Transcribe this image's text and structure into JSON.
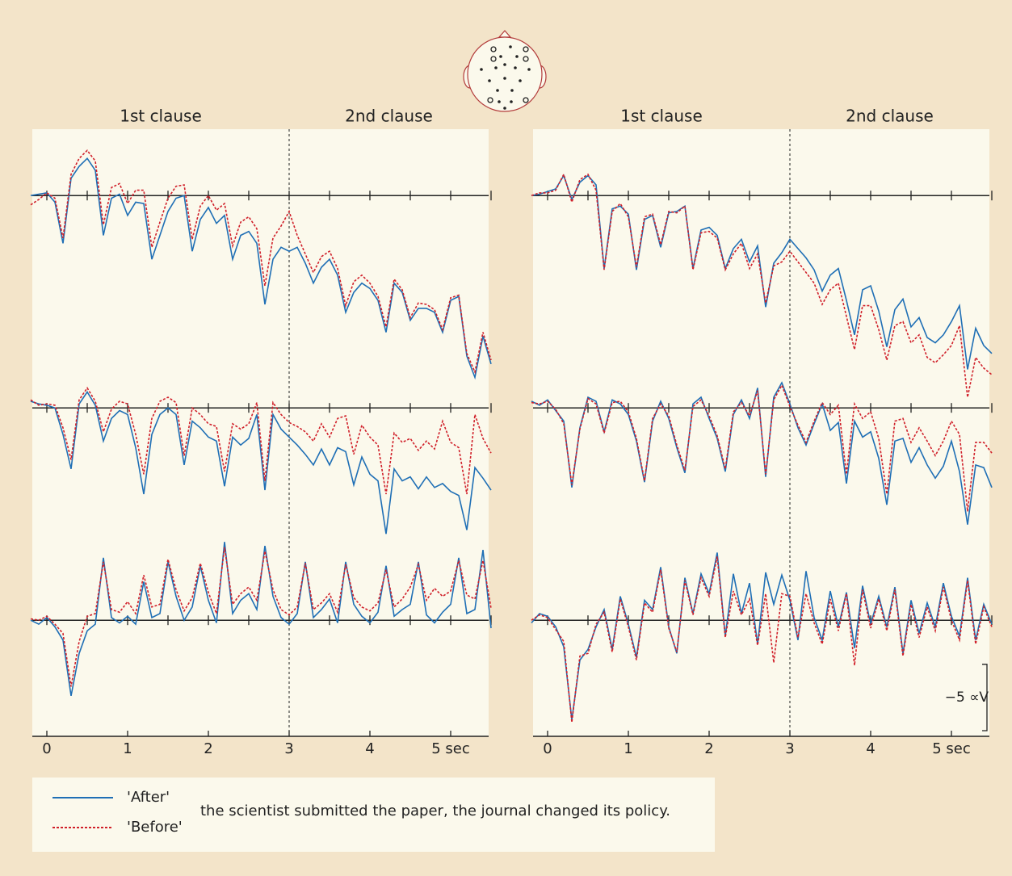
{
  "chart_data": [
    {
      "type": "line",
      "regions": [
        "1st clause",
        "2nd clause"
      ],
      "divider": 3,
      "x": [
        -0.2,
        -0.1,
        0,
        0.1,
        0.2,
        0.3,
        0.4,
        0.5,
        0.6,
        0.7,
        0.8,
        0.9,
        1,
        1.1,
        1.2,
        1.3,
        1.4,
        1.5,
        1.6,
        1.7,
        1.8,
        1.9,
        2,
        2.1,
        2.2,
        2.3,
        2.4,
        2.5,
        2.6,
        2.7,
        2.8,
        2.9,
        3,
        3.1,
        3.2,
        3.3,
        3.4,
        3.5,
        3.6,
        3.7,
        3.8,
        3.9,
        4,
        4.1,
        4.2,
        4.3,
        4.4,
        4.5,
        4.6,
        4.7,
        4.8,
        4.9,
        5,
        5.1,
        5.2,
        5.3,
        5.4,
        5.5
      ],
      "xlim": [
        -0.18,
        5.47
      ],
      "xticks": [
        0,
        1,
        2,
        3,
        4,
        {
          "value": 5,
          "label": "5 sec"
        }
      ],
      "minor_xticks": [
        0,
        0.5,
        1,
        1.5,
        2,
        2.5,
        3,
        3.5,
        4,
        4.5,
        5,
        5.5
      ],
      "ylim": [
        -11,
        5
      ],
      "channels": [
        {
          "series": [
            {
              "name": "'After'",
              "color": "#1f6fb5",
              "linestyle": "solid",
              "values": [
                0,
                0.1,
                0.2,
                -0.5,
                -3.6,
                1.3,
                2.2,
                2.8,
                1.9,
                -3,
                -0.2,
                0.1,
                -1.5,
                -0.5,
                -0.6,
                -4.8,
                -3,
                -1.2,
                -0.2,
                0,
                -4.2,
                -1.8,
                -0.9,
                -2.1,
                -1.5,
                -4.8,
                -3,
                -2.7,
                -3.6,
                -8.2,
                -4.8,
                -3.9,
                -4.2,
                -3.9,
                -5.1,
                -6.6,
                -5.4,
                -4.8,
                -6,
                -8.8,
                -7.3,
                -6.6,
                -7,
                -7.9,
                -10.3,
                -6.6,
                -7.3,
                -9.4,
                -8.5,
                -8.5,
                -8.8,
                -10.3,
                -7.9,
                -7.6,
                -12.1,
                -13.7,
                -10.6,
                -12.7
              ]
            },
            {
              "name": "'Before'",
              "color": "#d0202a",
              "linestyle": "dotted",
              "values": [
                -0.7,
                -0.3,
                0.2,
                -0.2,
                -3.2,
                1.6,
                2.8,
                3.4,
                2.6,
                -2.2,
                0.6,
                0.9,
                -0.6,
                0.4,
                0.4,
                -3.9,
                -2,
                -0.2,
                0.7,
                0.8,
                -3.3,
                -0.8,
                0,
                -1.1,
                -0.6,
                -3.8,
                -2,
                -1.6,
                -2.5,
                -6.8,
                -3.2,
                -2.3,
                -1.2,
                -3,
                -4.4,
                -5.8,
                -4.6,
                -4.2,
                -5.5,
                -8.3,
                -6.5,
                -6,
                -6.6,
                -7.6,
                -9.9,
                -6.3,
                -7.1,
                -9.2,
                -8.1,
                -8.2,
                -8.6,
                -10.1,
                -7.7,
                -7.5,
                -11.9,
                -13.3,
                -10.3,
                -12.4
              ]
            }
          ]
        },
        {
          "series": [
            {
              "color": "#1f6fb5",
              "linestyle": "solid",
              "values": [
                0.5,
                0.3,
                0.2,
                0,
                -2,
                -4.6,
                0.3,
                1.2,
                0.2,
                -2.5,
                -0.8,
                -0.2,
                -0.5,
                -3,
                -6.5,
                -2,
                -0.5,
                0,
                -0.5,
                -4.3,
                -1,
                -1.5,
                -2.2,
                -2.5,
                -5.9,
                -2.2,
                -2.8,
                -2.3,
                -0.5,
                -6.2,
                -0.5,
                -1.6,
                -2.2,
                -2.8,
                -3.5,
                -4.3,
                -3.1,
                -4.3,
                -3,
                -3.3,
                -5.8,
                -3.7,
                -5,
                -5.5,
                -9.5,
                -4.6,
                -5.5,
                -5.2,
                -6.1,
                -5.2,
                -6,
                -5.7,
                -6.3,
                -6.6,
                -9.2,
                -4.5,
                -5.3,
                -6.2
              ]
            },
            {
              "color": "#d0202a",
              "linestyle": "dotted",
              "values": [
                0.6,
                0.2,
                0.3,
                0.2,
                -1.5,
                -3.9,
                0.6,
                1.5,
                0.5,
                -1.8,
                -0.1,
                0.5,
                0.3,
                -2,
                -5,
                -0.8,
                0.5,
                0.8,
                0.4,
                -3.6,
                0,
                -0.5,
                -1.2,
                -1.4,
                -4.8,
                -1.2,
                -1.6,
                -1.2,
                0.4,
                -5.5,
                0.4,
                -0.5,
                -1.1,
                -1.4,
                -1.8,
                -2.5,
                -1.2,
                -2.2,
                -0.8,
                -0.6,
                -3.5,
                -1.3,
                -2.2,
                -2.8,
                -6.5,
                -1.9,
                -2.6,
                -2.3,
                -3.2,
                -2.5,
                -3.1,
                -1,
                -2.6,
                -3,
                -6.5,
                -0.5,
                -2.3,
                -3.4
              ]
            }
          ]
        },
        {
          "series": [
            {
              "color": "#1f6fb5",
              "linestyle": "solid",
              "values": [
                0,
                -0.3,
                0.2,
                -0.5,
                -1.5,
                -5.7,
                -2.5,
                -0.8,
                -0.3,
                4.7,
                0.2,
                -0.2,
                0.3,
                -0.3,
                2.9,
                0.2,
                0.5,
                4.4,
                1.8,
                0,
                1,
                4.1,
                1.5,
                -0.2,
                5.9,
                0.5,
                1.5,
                2,
                0.8,
                5.6,
                1.8,
                0.2,
                -0.3,
                0.5,
                4.4,
                0.2,
                0.8,
                1.6,
                -0.2,
                4.4,
                1.2,
                0.3,
                -0.2,
                0.6,
                4.1,
                0.3,
                0.8,
                1.2,
                4.4,
                0.4,
                -0.2,
                0.6,
                1.2,
                4.7,
                0.5,
                0.8,
                5.3,
                -0.6
              ]
            },
            {
              "color": "#d0202a",
              "linestyle": "dotted",
              "values": [
                0.1,
                0,
                0.3,
                -0.3,
                -1,
                -5,
                -1.6,
                0.3,
                0.5,
                4.4,
                0.8,
                0.6,
                1.4,
                0.5,
                3.4,
                1,
                1.2,
                4.6,
                2.3,
                0.7,
                1.7,
                4.3,
                2.1,
                0.5,
                5.5,
                1.2,
                2,
                2.5,
                1.5,
                5.2,
                2.3,
                0.8,
                0.4,
                1,
                4.3,
                0.8,
                1.3,
                2,
                0.6,
                4.2,
                1.7,
                1,
                0.7,
                1.3,
                3.8,
                1,
                1.6,
                2.5,
                4.2,
                1.5,
                2.4,
                1.8,
                2.2,
                4.5,
                1.9,
                1.6,
                4.5,
                0.9
              ]
            }
          ]
        }
      ]
    },
    {
      "type": "line",
      "regions": [
        "1st clause",
        "2nd clause"
      ],
      "divider": 3,
      "x": [
        -0.2,
        -0.1,
        0,
        0.1,
        0.2,
        0.3,
        0.4,
        0.5,
        0.6,
        0.7,
        0.8,
        0.9,
        1,
        1.1,
        1.2,
        1.3,
        1.4,
        1.5,
        1.6,
        1.7,
        1.8,
        1.9,
        2,
        2.1,
        2.2,
        2.3,
        2.4,
        2.5,
        2.6,
        2.7,
        2.8,
        2.9,
        3,
        3.1,
        3.2,
        3.3,
        3.4,
        3.5,
        3.6,
        3.7,
        3.8,
        3.9,
        4,
        4.1,
        4.2,
        4.3,
        4.4,
        4.5,
        4.6,
        4.7,
        4.8,
        4.9,
        5,
        5.1,
        5.2,
        5.3,
        5.4,
        5.5
      ],
      "xlim": [
        -0.18,
        5.47
      ],
      "xticks": [
        0,
        1,
        2,
        3,
        4,
        {
          "value": 5,
          "label": "5 sec"
        }
      ],
      "minor_xticks": [
        0,
        0.5,
        1,
        1.5,
        2,
        2.5,
        3,
        3.5,
        4,
        4.5,
        5,
        5.5
      ],
      "ylim": [
        -11,
        5
      ],
      "scale_bar": {
        "value": -5,
        "label": "−5 ∝V"
      },
      "channels": [
        {
          "series": [
            {
              "color": "#1f6fb5",
              "linestyle": "solid",
              "values": [
                0,
                0.1,
                0.3,
                0.5,
                1.5,
                -0.3,
                1,
                1.5,
                0.8,
                -5.5,
                -1,
                -0.8,
                -1.4,
                -5.6,
                -1.8,
                -1.5,
                -3.9,
                -1.3,
                -1.2,
                -0.8,
                -5.5,
                -2.6,
                -2.4,
                -3,
                -5.5,
                -4,
                -3.3,
                -5,
                -3.8,
                -8.4,
                -5.1,
                -4.3,
                -3.3,
                -4,
                -4.7,
                -5.6,
                -7.2,
                -6,
                -5.5,
                -7.9,
                -10.5,
                -7.1,
                -6.8,
                -8.7,
                -11.4,
                -8.6,
                -7.8,
                -9.9,
                -9.2,
                -10.7,
                -11.1,
                -10.5,
                -9.5,
                -8.3,
                -13.1,
                -10,
                -11.3,
                -11.9
              ]
            },
            {
              "color": "#d0202a",
              "linestyle": "dotted",
              "values": [
                0,
                0.2,
                0.2,
                0.4,
                1.6,
                -0.5,
                1.2,
                1.6,
                0.4,
                -5.6,
                -1.2,
                -0.6,
                -1.6,
                -5.4,
                -1.6,
                -1.4,
                -3.7,
                -1.2,
                -1.3,
                -0.8,
                -5.6,
                -2.8,
                -2.7,
                -3.2,
                -5.6,
                -4.4,
                -3.6,
                -5.5,
                -4.4,
                -8.1,
                -5.3,
                -5,
                -4.2,
                -5,
                -5.8,
                -6.6,
                -8.2,
                -7.1,
                -6.6,
                -9.1,
                -11.6,
                -8.3,
                -8.3,
                -10.1,
                -12.4,
                -9.8,
                -9.5,
                -11.1,
                -10.5,
                -12.2,
                -12.6,
                -12,
                -11.3,
                -9.8,
                -15.2,
                -12.2,
                -13,
                -13.5
              ]
            }
          ]
        },
        {
          "series": [
            {
              "color": "#1f6fb5",
              "linestyle": "solid",
              "values": [
                0.5,
                0.2,
                0.6,
                -0.2,
                -1,
                -6,
                -1.5,
                0.8,
                0.5,
                -1.8,
                0.6,
                0.3,
                -0.5,
                -2.5,
                -5.6,
                -1,
                0.5,
                -0.8,
                -3,
                -4.9,
                0.3,
                0.8,
                -0.8,
                -2.3,
                -4.8,
                -0.5,
                0.6,
                -0.8,
                1.5,
                -5.2,
                0.8,
                1.9,
                0.3,
                -1.5,
                -2.8,
                -1.2,
                0.3,
                -1.7,
                -1.1,
                -5.7,
                -1,
                -2.2,
                -1.8,
                -3.8,
                -7.3,
                -2.5,
                -2.3,
                -4.1,
                -3,
                -4.3,
                -5.3,
                -4.4,
                -2.5,
                -4.8,
                -8.8,
                -4.3,
                -4.5,
                -6
              ]
            },
            {
              "color": "#d0202a",
              "linestyle": "dotted",
              "values": [
                0.4,
                0.3,
                0.5,
                -0.1,
                -1.2,
                -5.8,
                -1.6,
                0.7,
                0.3,
                -1.9,
                0.4,
                0.5,
                -0.3,
                -2.3,
                -5.5,
                -0.8,
                0.3,
                -0.6,
                -2.8,
                -4.7,
                0.1,
                0.6,
                -0.6,
                -2.1,
                -4.6,
                -0.3,
                0.4,
                -0.6,
                1.3,
                -5,
                0.6,
                1.7,
                0.1,
                -1.3,
                -2.6,
                -1,
                0.4,
                -0.5,
                0.2,
                -5,
                0.3,
                -0.8,
                -0.3,
                -2.3,
                -6.5,
                -1,
                -0.8,
                -2.6,
                -1.5,
                -2.5,
                -3.6,
                -2.5,
                -1,
                -2,
                -7.8,
                -2.6,
                -2.6,
                -3.4
              ]
            }
          ]
        },
        {
          "series": [
            {
              "color": "#1f6fb5",
              "linestyle": "solid",
              "values": [
                -0.2,
                0.5,
                0.3,
                -0.5,
                -2,
                -7.5,
                -3,
                -2.2,
                -0.5,
                0.8,
                -2.2,
                1.8,
                -0.3,
                -2.8,
                1.5,
                0.8,
                4,
                -0.5,
                -2.5,
                3.2,
                0.5,
                3.5,
                2,
                5.1,
                -1.2,
                3.5,
                0.5,
                2.8,
                -1.8,
                3.6,
                1.2,
                3.4,
                1.5,
                -1.5,
                3.7,
                0.2,
                -1.5,
                2.2,
                -0.5,
                2.1,
                -2.1,
                2.6,
                -0.3,
                1.8,
                -0.5,
                2.5,
                -2.5,
                1.5,
                -1,
                1.3,
                -0.5,
                2.8,
                0.3,
                -1.2,
                3.2,
                -1.5,
                1.2,
                -0.3
              ]
            },
            {
              "color": "#d0202a",
              "linestyle": "dotted",
              "values": [
                0,
                0.4,
                0.2,
                -0.7,
                -1.6,
                -7.7,
                -2.7,
                -2.5,
                -0.3,
                0.6,
                -2.4,
                1.6,
                -0.5,
                -3,
                1.3,
                0.6,
                3.8,
                -0.6,
                -2.4,
                3,
                0.4,
                3.2,
                1.8,
                4.8,
                -1.3,
                2.2,
                0.4,
                1.6,
                -1.9,
                2,
                -3.2,
                2,
                1.8,
                -1.3,
                2,
                -0.2,
                -1.8,
                1.6,
                -0.8,
                2,
                -3.4,
                2.3,
                -0.6,
                1.6,
                -0.8,
                2.3,
                -2.7,
                1.2,
                -1.3,
                1,
                -0.8,
                2.5,
                0,
                -1.5,
                3,
                -1.8,
                1,
                -0.5
              ]
            }
          ]
        }
      ]
    }
  ],
  "caption": "the scientist submitted the paper, the journal changed its policy."
}
